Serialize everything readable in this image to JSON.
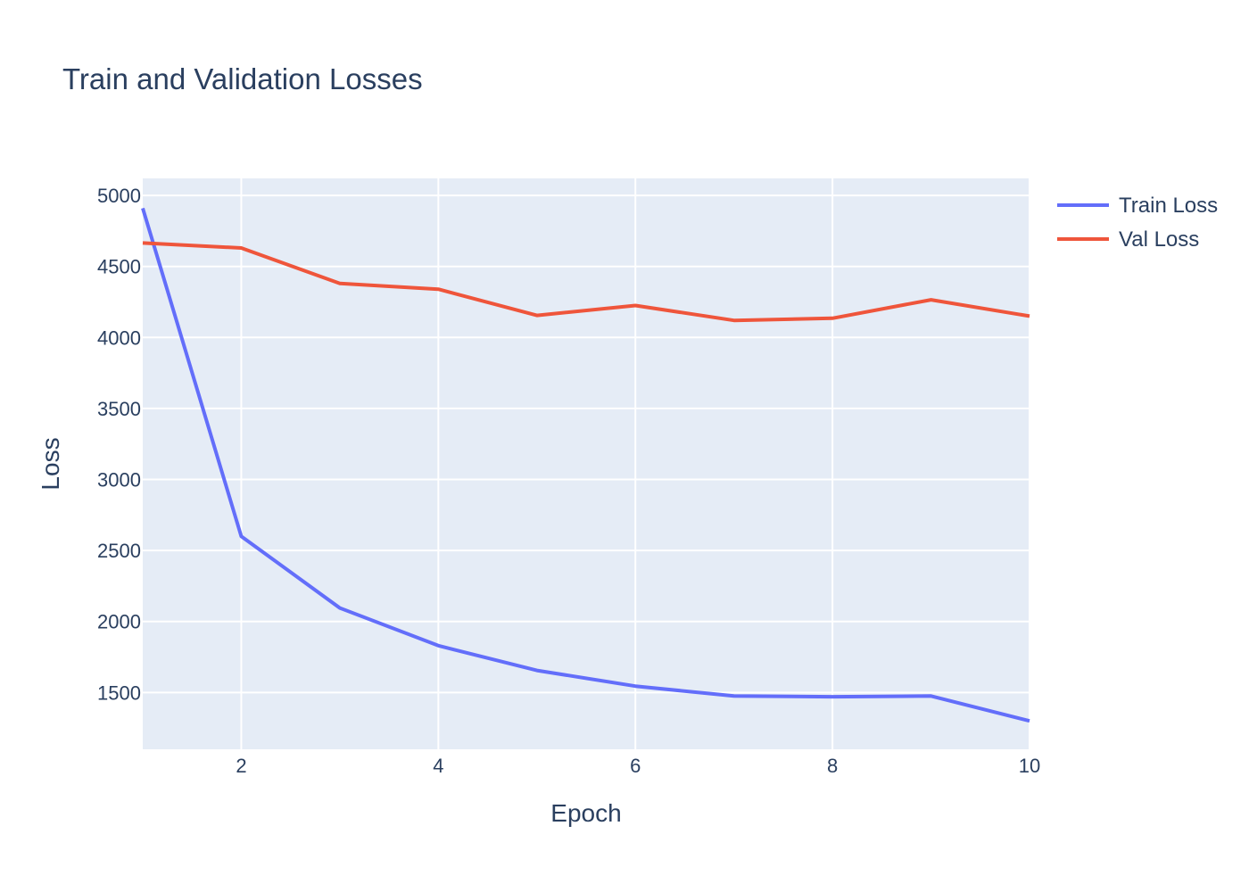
{
  "chart_data": {
    "type": "line",
    "title": "Train and Validation Losses",
    "xlabel": "Epoch",
    "ylabel": "Loss",
    "xlim": [
      1,
      10
    ],
    "ylim": [
      1100,
      5120
    ],
    "x": [
      1,
      2,
      3,
      4,
      5,
      6,
      7,
      8,
      9,
      10
    ],
    "x_ticks": [
      2,
      4,
      6,
      8,
      10
    ],
    "y_ticks": [
      1500,
      2000,
      2500,
      3000,
      3500,
      4000,
      4500,
      5000
    ],
    "grid": true,
    "legend_position": "top-right",
    "series": [
      {
        "name": "Train Loss",
        "color": "#636efa",
        "values": [
          4910,
          2600,
          2095,
          1830,
          1655,
          1545,
          1475,
          1470,
          1475,
          1300
        ]
      },
      {
        "name": "Val Loss",
        "color": "#ef553b",
        "values": [
          4665,
          4630,
          4380,
          4340,
          4155,
          4225,
          4120,
          4135,
          4265,
          4150
        ]
      }
    ]
  }
}
